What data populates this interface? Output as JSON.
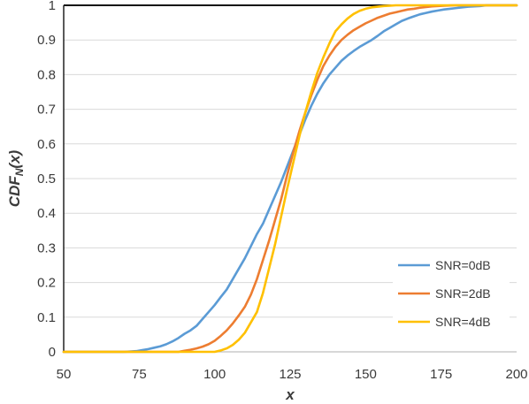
{
  "chart_data": {
    "type": "line",
    "title": "",
    "xlabel": "x",
    "ylabel_main": "CDF",
    "ylabel_sub": "N",
    "ylabel_suffix": "(x)",
    "xlim": [
      50,
      200
    ],
    "ylim": [
      0,
      1
    ],
    "xticks": [
      50,
      75,
      100,
      125,
      150,
      175,
      200
    ],
    "yticks": [
      0,
      0.1,
      0.2,
      0.3,
      0.4,
      0.5,
      0.6,
      0.7,
      0.8,
      0.9,
      1
    ],
    "ytick_labels": [
      "0",
      "0.1",
      "0.2",
      "0.3",
      "0.4",
      "0.5",
      "0.6",
      "0.7",
      "0.8",
      "0.9",
      "1"
    ],
    "xtick_labels": [
      "50",
      "75",
      "100",
      "125",
      "150",
      "175",
      "200"
    ],
    "grid": "horizontal",
    "legend_position": "bottom-right",
    "series": [
      {
        "name": "SNR=0dB",
        "color": "#5B9BD5",
        "x": [
          50,
          70,
          74,
          76,
          78,
          80,
          82,
          84,
          86,
          88,
          90,
          92,
          94,
          96,
          98,
          100,
          102,
          104,
          106,
          108,
          110,
          112,
          114,
          116,
          118,
          120,
          122,
          124,
          126,
          128,
          130,
          132,
          134,
          136,
          138,
          140,
          142,
          144,
          146,
          148,
          150,
          152,
          154,
          156,
          158,
          160,
          162,
          164,
          166,
          168,
          170,
          172,
          174,
          176,
          178,
          180,
          182,
          184,
          186,
          188,
          190,
          200
        ],
        "y": [
          0,
          0,
          0.002,
          0.005,
          0.008,
          0.012,
          0.016,
          0.022,
          0.03,
          0.04,
          0.052,
          0.062,
          0.075,
          0.095,
          0.115,
          0.135,
          0.158,
          0.18,
          0.21,
          0.24,
          0.27,
          0.305,
          0.34,
          0.37,
          0.41,
          0.45,
          0.49,
          0.535,
          0.58,
          0.625,
          0.67,
          0.71,
          0.745,
          0.775,
          0.8,
          0.82,
          0.84,
          0.855,
          0.868,
          0.88,
          0.89,
          0.9,
          0.912,
          0.925,
          0.935,
          0.945,
          0.955,
          0.962,
          0.968,
          0.974,
          0.978,
          0.982,
          0.985,
          0.988,
          0.99,
          0.992,
          0.994,
          0.996,
          0.997,
          0.998,
          1,
          1
        ]
      },
      {
        "name": "SNR=2dB",
        "color": "#ED7D31",
        "x": [
          50,
          88,
          90,
          92,
          94,
          96,
          98,
          100,
          102,
          104,
          106,
          108,
          110,
          112,
          114,
          116,
          118,
          120,
          122,
          124,
          126,
          128,
          130,
          132,
          134,
          136,
          138,
          140,
          142,
          144,
          146,
          148,
          150,
          152,
          154,
          156,
          158,
          160,
          162,
          164,
          166,
          168,
          170,
          172,
          174,
          176,
          180,
          200
        ],
        "y": [
          0,
          0,
          0.003,
          0.006,
          0.01,
          0.015,
          0.022,
          0.032,
          0.046,
          0.062,
          0.082,
          0.105,
          0.13,
          0.165,
          0.21,
          0.265,
          0.32,
          0.38,
          0.44,
          0.51,
          0.575,
          0.635,
          0.69,
          0.74,
          0.785,
          0.825,
          0.855,
          0.88,
          0.9,
          0.915,
          0.928,
          0.938,
          0.948,
          0.956,
          0.964,
          0.97,
          0.976,
          0.98,
          0.984,
          0.988,
          0.99,
          0.993,
          0.995,
          0.997,
          0.998,
          0.999,
          1,
          1
        ]
      },
      {
        "name": "SNR=4dB",
        "color": "#FFC000",
        "x": [
          50,
          100,
          102,
          104,
          106,
          108,
          110,
          112,
          114,
          116,
          118,
          120,
          122,
          124,
          126,
          128,
          130,
          132,
          134,
          136,
          138,
          140,
          142,
          144,
          146,
          148,
          150,
          152,
          154,
          156,
          158,
          160,
          162,
          170,
          200
        ],
        "y": [
          0,
          0,
          0.004,
          0.01,
          0.02,
          0.035,
          0.055,
          0.085,
          0.115,
          0.17,
          0.24,
          0.31,
          0.39,
          0.47,
          0.545,
          0.62,
          0.69,
          0.75,
          0.805,
          0.85,
          0.89,
          0.925,
          0.945,
          0.962,
          0.975,
          0.984,
          0.99,
          0.994,
          0.996,
          0.998,
          0.999,
          1,
          1,
          1,
          1
        ]
      }
    ]
  }
}
